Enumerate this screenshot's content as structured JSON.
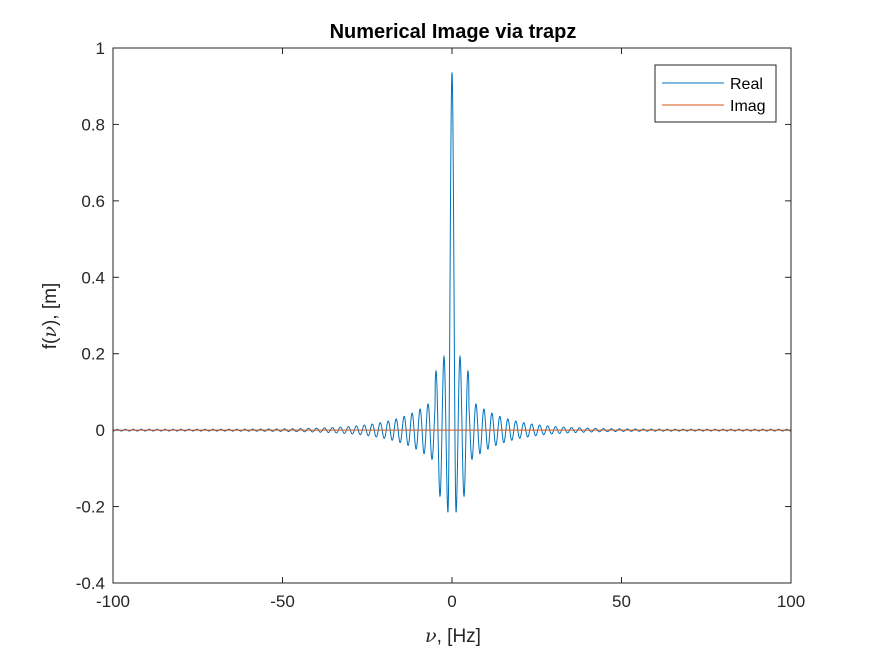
{
  "chart_data": {
    "type": "line",
    "title": "Numerical Image via trapz",
    "xlabel": "ν, [Hz]",
    "xlabel_parts": {
      "symbol": "ν",
      "rest": ", [Hz]"
    },
    "ylabel": "f(ν), [m]",
    "ylabel_parts": {
      "prefix": "f(",
      "symbol": "ν",
      "suffix": "), [m]"
    },
    "xlim": [
      -100,
      100
    ],
    "ylim": [
      -0.4,
      1
    ],
    "xticks": [
      -100,
      -50,
      0,
      50,
      100
    ],
    "xtick_labels": [
      "-100",
      "-50",
      "0",
      "50",
      "100"
    ],
    "yticks": [
      -0.4,
      -0.2,
      0,
      0.2,
      0.4,
      0.6,
      0.8,
      1
    ],
    "ytick_labels": [
      "-0.4",
      "-0.2",
      "0",
      "0.2",
      "0.4",
      "0.6",
      "0.8",
      "1"
    ],
    "grid": false,
    "legend_position": "top-right",
    "series": [
      {
        "name": "Real",
        "color": "#0072BD",
        "description_model": {
          "peak": 0.936,
          "first_minimum": -0.215,
          "first_minimum_x": 1.2,
          "oscillation_period_hz": 2.35,
          "envelope_at_5hz": 0.11,
          "envelope_decay_hz": 10.5,
          "envelope_floor": 0.004
        }
      },
      {
        "name": "Imag",
        "color": "#D95319",
        "values_constant": 0
      }
    ]
  }
}
